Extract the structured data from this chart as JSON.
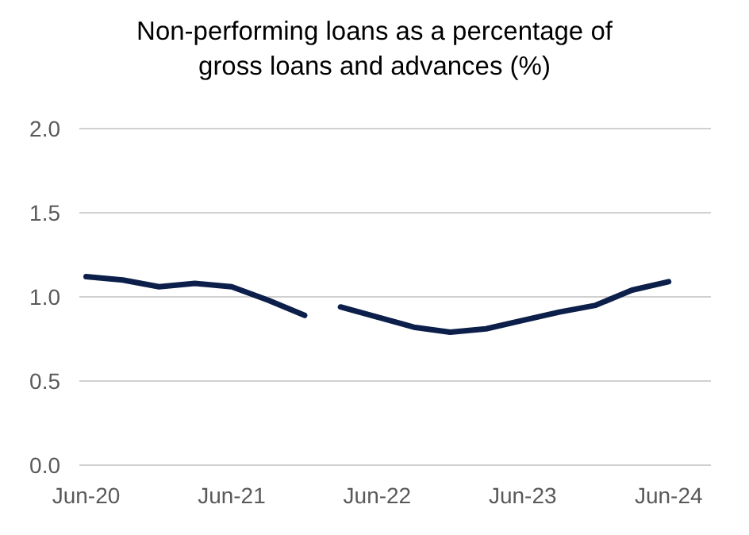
{
  "chart_data": {
    "type": "line",
    "title": "Non-performing loans as a percentage of gross loans and advances (%)",
    "x": [
      "2020-06",
      "2020-09",
      "2020-12",
      "2021-03",
      "2021-06",
      "2021-09",
      "2021-12",
      "2022-02",
      "2022-03",
      "2022-06",
      "2022-09",
      "2022-12",
      "2023-03",
      "2023-06",
      "2023-09",
      "2023-12",
      "2024-03",
      "2024-06"
    ],
    "series": [
      {
        "color": "#0c1f4a",
        "values": [
          1.12,
          1.1,
          1.06,
          1.08,
          1.06,
          0.98,
          0.89,
          null,
          0.94,
          0.88,
          0.82,
          0.79,
          0.81,
          0.86,
          0.91,
          0.95,
          1.04,
          1.09
        ]
      }
    ],
    "xlim": [
      "2020-05-15",
      "2024-09-15"
    ],
    "xticks": [
      {
        "value": "2020-06",
        "label": "Jun-20"
      },
      {
        "value": "2021-06",
        "label": "Jun-21"
      },
      {
        "value": "2022-06",
        "label": "Jun-22"
      },
      {
        "value": "2023-06",
        "label": "Jun-23"
      },
      {
        "value": "2024-06",
        "label": "Jun-24"
      }
    ],
    "ylim": [
      0,
      2
    ],
    "yticks": [
      {
        "value": 0,
        "label": "0.0"
      },
      {
        "value": 0.5,
        "label": "0.5"
      },
      {
        "value": 1,
        "label": "1.0"
      },
      {
        "value": 1.5,
        "label": "1.5"
      },
      {
        "value": 2,
        "label": "2.0"
      }
    ],
    "grid": "y",
    "marker": "none",
    "line_style": "solid"
  }
}
